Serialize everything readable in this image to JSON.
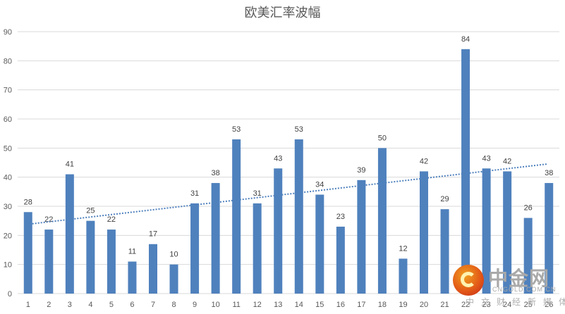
{
  "chart_data": {
    "type": "bar",
    "title": "欧美汇率波幅",
    "xlabel": "",
    "ylabel": "",
    "ylim": [
      0,
      90
    ],
    "yticks": [
      0,
      10,
      20,
      30,
      40,
      50,
      60,
      70,
      80,
      90
    ],
    "grid": true,
    "legend": "none",
    "categories": [
      "1",
      "2",
      "3",
      "4",
      "5",
      "6",
      "7",
      "8",
      "9",
      "10",
      "11",
      "12",
      "13",
      "14",
      "15",
      "16",
      "17",
      "18",
      "19",
      "20",
      "21",
      "22",
      "23",
      "24",
      "25",
      "26"
    ],
    "values": [
      28,
      22,
      41,
      25,
      22,
      11,
      17,
      10,
      31,
      38,
      53,
      31,
      43,
      53,
      34,
      23,
      39,
      50,
      12,
      42,
      29,
      84,
      43,
      42,
      26,
      38
    ],
    "data_labels": true,
    "trendline": {
      "type": "linear",
      "style": "dotted",
      "start": 24,
      "end": 44.5
    },
    "colors": {
      "bar": "#4f81bd",
      "trend": "#4f81bd",
      "grid": "#d9d9d9",
      "text": "#595959"
    }
  },
  "watermark": {
    "brand_cn": "中金网",
    "brand_en": "CNGOLD.COM.CN",
    "tagline": "中文财经新媒体"
  }
}
